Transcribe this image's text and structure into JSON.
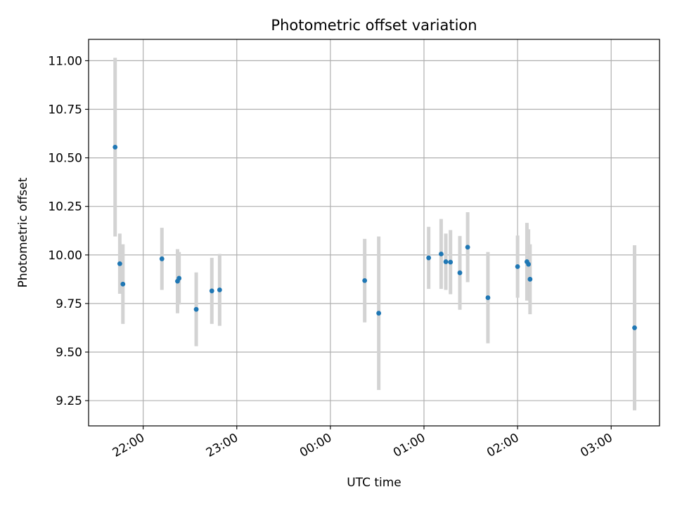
{
  "chart_data": {
    "type": "scatter",
    "title": "Photometric offset variation",
    "xlabel": "UTC time",
    "ylabel": "Photometric offset",
    "x_ticks": [
      "22:00",
      "23:00",
      "00:00",
      "01:00",
      "02:00",
      "03:00"
    ],
    "y_ticks": [
      "9.25",
      "9.50",
      "9.75",
      "10.00",
      "10.25",
      "10.50",
      "10.75",
      "11.00"
    ],
    "xlim": [
      "21:25",
      "03:31"
    ],
    "ylim": [
      9.12,
      11.11
    ],
    "grid": true,
    "colors": {
      "points": "#1f77b4",
      "error_bars": "#d3d3d3",
      "grid": "#b0b0b0"
    },
    "points": [
      {
        "time": "21:42",
        "y": 10.555,
        "err": 0.46
      },
      {
        "time": "21:45",
        "y": 9.955,
        "err": 0.155
      },
      {
        "time": "21:47",
        "y": 9.85,
        "err": 0.205
      },
      {
        "time": "22:12",
        "y": 9.98,
        "err": 0.16
      },
      {
        "time": "22:22",
        "y": 9.865,
        "err": 0.165
      },
      {
        "time": "22:23",
        "y": 9.88,
        "err": 0.135
      },
      {
        "time": "22:34",
        "y": 9.72,
        "err": 0.19
      },
      {
        "time": "22:44",
        "y": 9.815,
        "err": 0.17
      },
      {
        "time": "22:49",
        "y": 9.82,
        "err": 0.185
      },
      {
        "time": "00:22",
        "y": 9.868,
        "err": 0.215
      },
      {
        "time": "00:31",
        "y": 9.7,
        "err": 0.395
      },
      {
        "time": "01:03",
        "y": 9.985,
        "err": 0.16
      },
      {
        "time": "01:11",
        "y": 10.005,
        "err": 0.18
      },
      {
        "time": "01:14",
        "y": 9.965,
        "err": 0.145
      },
      {
        "time": "01:17",
        "y": 9.963,
        "err": 0.165
      },
      {
        "time": "01:23",
        "y": 9.908,
        "err": 0.19
      },
      {
        "time": "01:28",
        "y": 10.04,
        "err": 0.18
      },
      {
        "time": "01:41",
        "y": 9.78,
        "err": 0.235
      },
      {
        "time": "02:00",
        "y": 9.94,
        "err": 0.16
      },
      {
        "time": "02:06",
        "y": 9.965,
        "err": 0.2
      },
      {
        "time": "02:07",
        "y": 9.952,
        "err": 0.18
      },
      {
        "time": "02:08",
        "y": 9.875,
        "err": 0.18
      },
      {
        "time": "03:15",
        "y": 9.625,
        "err": 0.425
      }
    ]
  }
}
